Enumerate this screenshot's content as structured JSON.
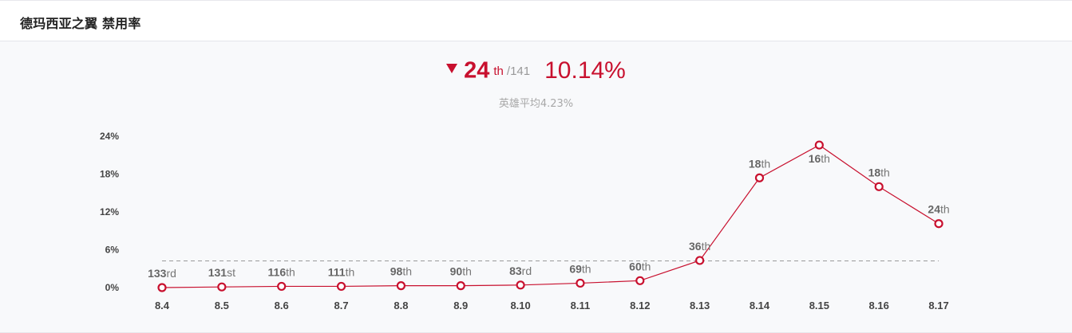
{
  "header": {
    "title": "德玛西亚之翼 禁用率"
  },
  "summary": {
    "rank": "24",
    "rank_suffix": "th",
    "rank_total": "/141",
    "rate": "10.14%",
    "trend_icon": "down-triangle-icon",
    "average_label": "英雄平均4.23%"
  },
  "colors": {
    "accent": "#c8102e",
    "grid_average_line": "#999999",
    "background": "#f8f9fb"
  },
  "chart_data": {
    "type": "line",
    "title": "德玛西亚之翼 禁用率",
    "xlabel": "",
    "ylabel": "",
    "categories": [
      "8.4",
      "8.5",
      "8.6",
      "8.7",
      "8.8",
      "8.9",
      "8.10",
      "8.11",
      "8.12",
      "8.13",
      "8.14",
      "8.15",
      "8.16",
      "8.17"
    ],
    "series": [
      {
        "values": [
          0.0,
          0.1,
          0.2,
          0.2,
          0.3,
          0.3,
          0.4,
          0.7,
          1.1,
          4.3,
          17.4,
          22.6,
          16.0,
          10.14
        ],
        "rank_numbers": [
          "133",
          "131",
          "116",
          "111",
          "98",
          "90",
          "83",
          "69",
          "60",
          "36",
          "18",
          "16",
          "18",
          "24"
        ],
        "rank_suffixes": [
          "rd",
          "st",
          "th",
          "th",
          "th",
          "th",
          "rd",
          "th",
          "th",
          "th",
          "th",
          "th",
          "th",
          "th"
        ]
      }
    ],
    "ylim": [
      0,
      24
    ],
    "yticks": [
      0,
      6,
      12,
      18,
      24
    ],
    "ytick_labels": [
      "0%",
      "6%",
      "12%",
      "18%",
      "24%"
    ],
    "average_line": 4.23,
    "grid": false,
    "legend": "none"
  }
}
